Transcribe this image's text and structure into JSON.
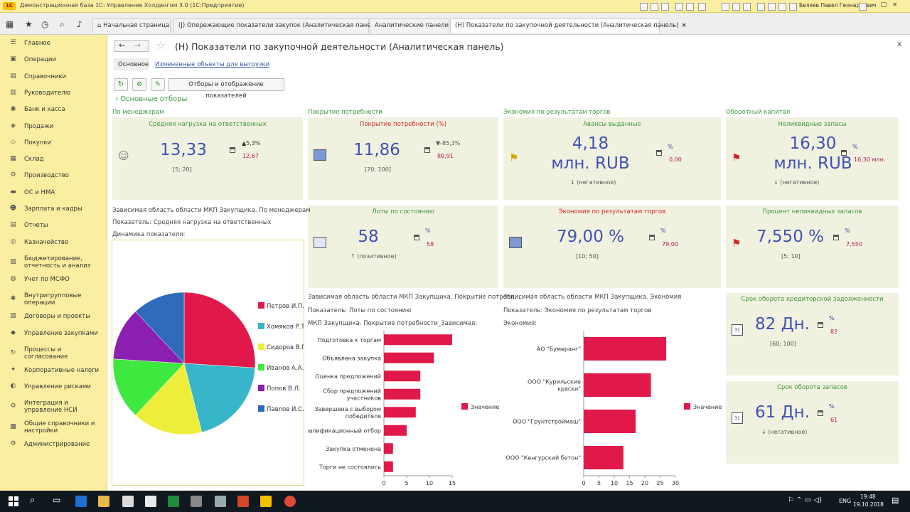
{
  "window": {
    "title": "Демонстрационная база 1С: Управление Холдингом 3.0  (1С:Предприятие)",
    "user": "Беляев Павел Геннадьевич"
  },
  "tabs": [
    {
      "label": "Начальная страница",
      "closable": false
    },
    {
      "label": "(J) Опережающие показатели закупок (Аналитическая панель)",
      "closable": true
    },
    {
      "label": "Аналитические панели",
      "closable": true
    },
    {
      "label": "(Н) Показатели по закупочной деятельности (Аналитическая панель)",
      "closable": true
    }
  ],
  "sidebar": [
    {
      "label": "Главное",
      "icon": "menu-icon"
    },
    {
      "label": "Операции",
      "icon": "operations-icon"
    },
    {
      "label": "Справочники",
      "icon": "book-icon"
    },
    {
      "label": "Руководителю",
      "icon": "chart-icon"
    },
    {
      "label": "Банк и касса",
      "icon": "bank-icon"
    },
    {
      "label": "Продажи",
      "icon": "cart-icon"
    },
    {
      "label": "Покупки",
      "icon": "basket-icon"
    },
    {
      "label": "Склад",
      "icon": "warehouse-icon"
    },
    {
      "label": "Производство",
      "icon": "factory-icon"
    },
    {
      "label": "ОС и НМА",
      "icon": "truck-icon"
    },
    {
      "label": "Зарплата и кадры",
      "icon": "people-icon"
    },
    {
      "label": "Отчеты",
      "icon": "report-icon"
    },
    {
      "label": "Казначейство",
      "icon": "treasury-icon"
    },
    {
      "label": "Бюджетирование, отчетность и анализ",
      "icon": "budget-icon"
    },
    {
      "label": "Учет по МСФО",
      "icon": "ifrs-icon"
    },
    {
      "label": "Внутригрупповые операции",
      "icon": "group-icon"
    },
    {
      "label": "Договоры и проекты",
      "icon": "contract-icon"
    },
    {
      "label": "Управление закупками",
      "icon": "purchase-icon"
    },
    {
      "label": "Процессы и согласование",
      "icon": "process-icon"
    },
    {
      "label": "Корпоративные налоги",
      "icon": "tax-icon"
    },
    {
      "label": "Управление рисками",
      "icon": "risk-icon"
    },
    {
      "label": "Интеграция и управление НСИ",
      "icon": "integration-icon"
    },
    {
      "label": "Общие справочники и настройки",
      "icon": "settings-icon"
    },
    {
      "label": "Администрирование",
      "icon": "gear-icon"
    }
  ],
  "page": {
    "title": "(Н) Показатели по закупочной деятельности (Аналитическая панель)",
    "subtab_main": "Основное",
    "subtab_link": "Измененные объекты для выгрузки",
    "filters_button": "Отборы и отображение показателей",
    "filters_group": "Основные отборы"
  },
  "sections": {
    "s1": "По менеджерам",
    "s2": "Покрытие потребности",
    "s3": "Экономия по результатам торгов",
    "s4": "Оборотный капитал"
  },
  "kpi": {
    "k1": {
      "title": "Средняя нагрузка на ответственных",
      "value": "13,33",
      "range": "[5; 20]",
      "delta": "▲5,3%",
      "prev": "12,67"
    },
    "k2": {
      "title": "Покрытие потребности (%)",
      "value": "11,86",
      "range": "[70; 100]",
      "delta": "▼-85,3%",
      "prev": "80,91"
    },
    "k3": {
      "title": "Авансы выданные",
      "value_1": "4,18",
      "value_2": "млн. RUB",
      "note": "↓ (негативное)",
      "pct": "%",
      "prev": "0,00"
    },
    "k4": {
      "title": "Неликвидные запасы",
      "value_1": "16,30",
      "value_2": "млн. RUB",
      "note": "↓ (негативное)",
      "pct": "%",
      "prev": "16,30 млн."
    },
    "k5": {
      "title": "Лоты по состоянию",
      "value": "58",
      "note": "↑ (позитивное)",
      "pct": "%",
      "prev": "58"
    },
    "k6": {
      "title": "Экономия по результатам торгов",
      "value": "79,00 %",
      "range": "[10; 50]",
      "pct": "%",
      "prev": "79,00"
    },
    "k7": {
      "title": "Процент неликвидных запасов",
      "value": "7,550 %",
      "range": "[5; 10]",
      "pct": "%",
      "prev": "7,550"
    },
    "k8": {
      "title": "Срок оборота кредиторской задолженности",
      "value": "82 Дн.",
      "range": "[60; 100]",
      "pct": "%",
      "prev": "82"
    },
    "k9": {
      "title": "Срок оборота запасов",
      "value": "61 Дн.",
      "note": "↓ (негативное)",
      "pct": "%",
      "prev": "61"
    }
  },
  "dependent": {
    "d1_area": "Зависимая область области МКП Закупщика. По менеджерам",
    "d1_indicator": "Показатель:  Средняя нагрузка на ответственных",
    "d1_chart": "Динамика показателя:",
    "d2_area": "Зависимая область области МКП Закупщика. Покрытие потребн...",
    "d2_indicator": "Показатель:  Лоты по состоянию",
    "d2_chart": "МКП Закупщика. Покрытие потребности_Зависимая:",
    "d3_area": "Зависимая область области МКП Закупщика. Экономия",
    "d3_indicator": "Показатель:  Экономия по результатам торгов",
    "d3_chart": "Экономия:"
  },
  "chart_data": [
    {
      "type": "pie",
      "legend_position": "right",
      "categories": [
        "Петров И.П.",
        "Хомяков Р.Т.",
        "Сидоров В.Г.",
        "Иванов А.А.",
        "Попов В.Л.",
        "Павлов И.С."
      ],
      "values": [
        26,
        20,
        16,
        14,
        12,
        12
      ],
      "colors": [
        "#e0194a",
        "#36b6c8",
        "#eeee3a",
        "#3ee83e",
        "#8a1fb0",
        "#2f6bb8"
      ]
    },
    {
      "type": "bar",
      "orientation": "horizontal",
      "categories": [
        "Подготовка к торгам",
        "Объявлена закупка",
        "Оценка предложений",
        "Сбор предложений участников",
        "Завершена с выбором победителя",
        "Квалификационный отбор",
        "Закупка отменена",
        "Торги не состоялись"
      ],
      "series": [
        {
          "name": "Значение",
          "values": [
            15,
            11,
            8,
            8,
            7,
            5,
            2,
            2
          ],
          "color": "#e0194a"
        }
      ],
      "xlim": [
        0,
        15
      ],
      "xticks": [
        0,
        5,
        10,
        15
      ],
      "legend_position": "right"
    },
    {
      "type": "bar",
      "orientation": "horizontal",
      "categories": [
        "АО \"Бумеранг\"",
        "ООО \"Курильские краски\"",
        "ООО \"Грунтстроймаш\"",
        "ООО \"Кенгурский бетон\""
      ],
      "series": [
        {
          "name": "Значение",
          "values": [
            27,
            22,
            17,
            13
          ],
          "color": "#e0194a"
        }
      ],
      "xlim": [
        0,
        30
      ],
      "xticks": [
        0,
        5,
        10,
        15,
        20,
        25,
        30
      ],
      "legend_position": "right"
    }
  ],
  "taskbar": {
    "time": "19:48",
    "date": "19.10.2018",
    "lang": "ENG"
  }
}
